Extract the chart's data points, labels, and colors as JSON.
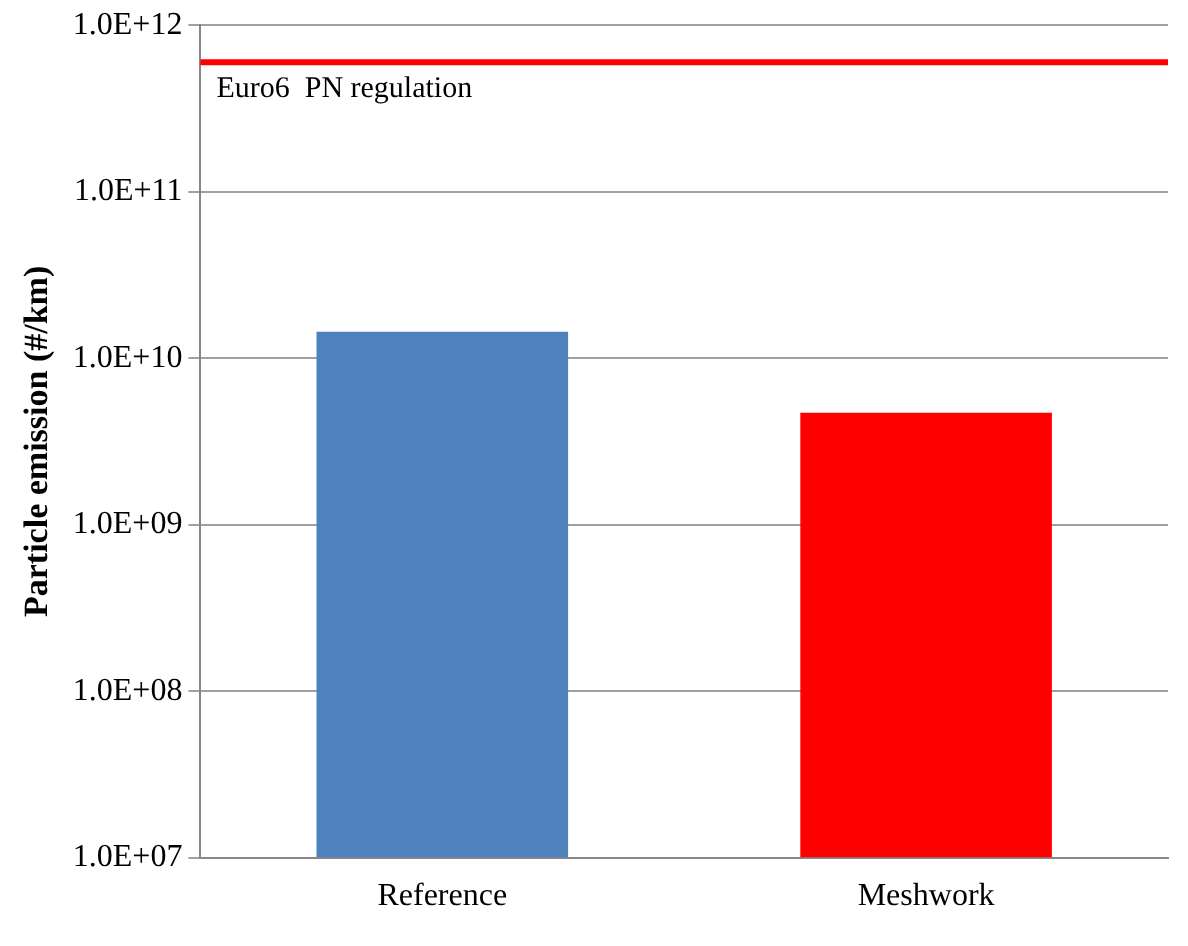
{
  "chart_data": {
    "type": "bar",
    "ylabel": "Particle emission (#/km)",
    "categories": [
      "Reference",
      "Meshwork"
    ],
    "series": [
      {
        "values": [
          14400000000.0,
          4700000000.0
        ],
        "colors": [
          "#4f81bd",
          "#ff0000"
        ]
      }
    ],
    "log": true,
    "ylim": [
      10000000.0,
      1000000000000.0
    ],
    "yticks": [
      {
        "value": 10000000.0,
        "label": "1.0E+07"
      },
      {
        "value": 100000000.0,
        "label": "1.0E+08"
      },
      {
        "value": 1000000000.0,
        "label": "1.0E+09"
      },
      {
        "value": 10000000000.0,
        "label": "1.0E+10"
      },
      {
        "value": 100000000000.0,
        "label": "1.0E+11"
      },
      {
        "value": 1000000000000.0,
        "label": "1.0E+12"
      }
    ],
    "grid": "y",
    "legend": false,
    "ref_lines": [
      {
        "axis": "y",
        "value": 600000000000.0,
        "label": "Euro6  PN regulation",
        "color": "#ff0000"
      }
    ]
  }
}
